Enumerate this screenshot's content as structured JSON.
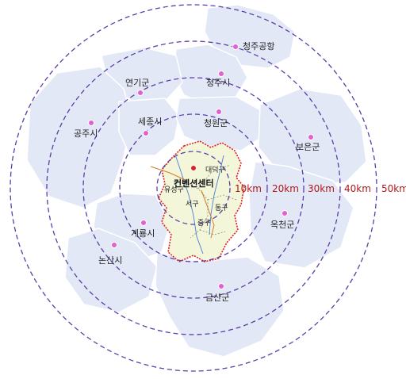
{
  "colors": {
    "ring": "#5a3ea8",
    "region_fill": "#e3e8f7",
    "region_edge": "#ffffff",
    "city_fill": "#f3f6d9",
    "city_border": "#e01f1f",
    "marker": "#e05fd2",
    "center_marker": "#e01f1f",
    "ring_label": "#b01818",
    "river": "#4a7fd6",
    "road": "#d47b2a"
  },
  "center": {
    "label": "컨벤션센터",
    "marker_icon": "red-dot-icon"
  },
  "rings": [
    {
      "label": "10km"
    },
    {
      "label": "20km"
    },
    {
      "label": "30km"
    },
    {
      "label": "40km"
    },
    {
      "label": "50km"
    }
  ],
  "places": [
    {
      "id": "cheongju-airport",
      "label": "청주공항"
    },
    {
      "id": "yeongi",
      "label": "연기군"
    },
    {
      "id": "cheongju",
      "label": "청주시"
    },
    {
      "id": "sejong",
      "label": "세종시"
    },
    {
      "id": "cheongwon",
      "label": "청원군"
    },
    {
      "id": "gongju",
      "label": "공주시"
    },
    {
      "id": "boeun",
      "label": "보은군"
    },
    {
      "id": "okcheon",
      "label": "옥천군"
    },
    {
      "id": "gyeryong",
      "label": "계룡시"
    },
    {
      "id": "nonsan",
      "label": "논산시"
    },
    {
      "id": "geumsan",
      "label": "금산군"
    }
  ],
  "districts": [
    {
      "id": "daedeok",
      "label": "대덕구"
    },
    {
      "id": "yuseong",
      "label": "유성구"
    },
    {
      "id": "seo",
      "label": "서구"
    },
    {
      "id": "dong",
      "label": "동구"
    },
    {
      "id": "jung",
      "label": "중구"
    }
  ]
}
